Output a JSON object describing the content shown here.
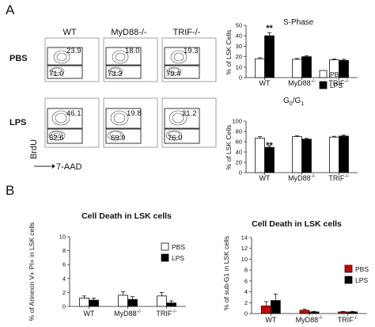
{
  "panels": {
    "a": "A",
    "b": "B"
  },
  "flow": {
    "columns": [
      "WT",
      "MyD88-/-",
      "TRIF-/-"
    ],
    "rows": [
      "PBS",
      "LPS"
    ],
    "y_axis_label": "BrdU",
    "x_axis_label": "7-AAD",
    "quadrants": [
      [
        {
          "upper": "23.9",
          "lower": "71.0"
        },
        {
          "upper": "18.0",
          "lower": "73.3"
        },
        {
          "upper": "19.3",
          "lower": "79.4"
        }
      ],
      [
        {
          "upper": "46.1",
          "lower": "52.6"
        },
        {
          "upper": "19.8",
          "lower": "69.9"
        },
        {
          "upper": "21.2",
          "lower": "76.0"
        }
      ]
    ]
  },
  "chart_data": [
    {
      "type": "bar",
      "title": "S-Phase",
      "ylabel": "% of LSK Cells",
      "categories": [
        "WT",
        "MyD88-/-",
        "TRIF-/-"
      ],
      "ylim": [
        0,
        50
      ],
      "yticks": [
        "0",
        "10",
        "20",
        "30",
        "40",
        "50"
      ],
      "series": [
        {
          "name": "PBS",
          "values": [
            18,
            17.5,
            17
          ],
          "errors": [
            1,
            0.8,
            0.8
          ]
        },
        {
          "name": "LPS",
          "values": [
            40,
            20,
            16.5
          ],
          "errors": [
            3,
            1,
            1
          ]
        }
      ],
      "annotations": [
        "**"
      ],
      "legend": "right",
      "color_pbs": "#ffffff",
      "color_lps": "#000000"
    },
    {
      "type": "bar",
      "title": "G0/G1",
      "ylabel": "% of LSK Cells",
      "categories": [
        "WT",
        "MyD88-/-",
        "TRIF-/-"
      ],
      "ylim": [
        0,
        100
      ],
      "yticks": [
        "0",
        "20",
        "40",
        "60",
        "80",
        "100"
      ],
      "series": [
        {
          "name": "PBS",
          "values": [
            67,
            70,
            69
          ],
          "errors": [
            3,
            1.5,
            1.5
          ]
        },
        {
          "name": "LPS",
          "values": [
            49,
            65,
            71
          ],
          "errors": [
            3,
            1.5,
            2
          ]
        }
      ],
      "annotations": [
        "**"
      ],
      "color_pbs": "#ffffff",
      "color_lps": "#000000"
    },
    {
      "type": "bar",
      "title": "Cell Death in LSK cells",
      "ylabel": "% of Annexin V+ PI+ in LSK cells",
      "categories": [
        "WT",
        "MyD88-/-",
        "TRIF-/-"
      ],
      "ylim": [
        0,
        10
      ],
      "yticks": [
        "0",
        "2",
        "4",
        "6",
        "8",
        "10"
      ],
      "series": [
        {
          "name": "PBS",
          "values": [
            1.2,
            1.6,
            1.5
          ],
          "errors": [
            0.3,
            0.5,
            0.5
          ]
        },
        {
          "name": "LPS",
          "values": [
            0.9,
            1.0,
            0.5
          ],
          "errors": [
            0.3,
            0.4,
            0.3
          ]
        }
      ],
      "legend": "right",
      "color_pbs": "#ffffff",
      "color_lps": "#000000"
    },
    {
      "type": "bar",
      "title": "Cell Death in LSK cells",
      "ylabel": "% of sub-G1 in LSK cells",
      "categories": [
        "WT",
        "MyD88-/-",
        "TRIF-/-"
      ],
      "ylim": [
        0,
        14
      ],
      "yticks": [
        "0",
        "2",
        "4",
        "6",
        "8",
        "10",
        "12",
        "14"
      ],
      "series": [
        {
          "name": "PBS",
          "values": [
            1.4,
            0.6,
            0.3
          ],
          "errors": [
            0.8,
            0.2,
            0.1
          ]
        },
        {
          "name": "LPS",
          "values": [
            2.4,
            0.3,
            0.3
          ],
          "errors": [
            1.2,
            0.1,
            0.1
          ]
        }
      ],
      "legend": "right",
      "color_pbs": "#cc0000",
      "color_lps": "#000000"
    }
  ]
}
